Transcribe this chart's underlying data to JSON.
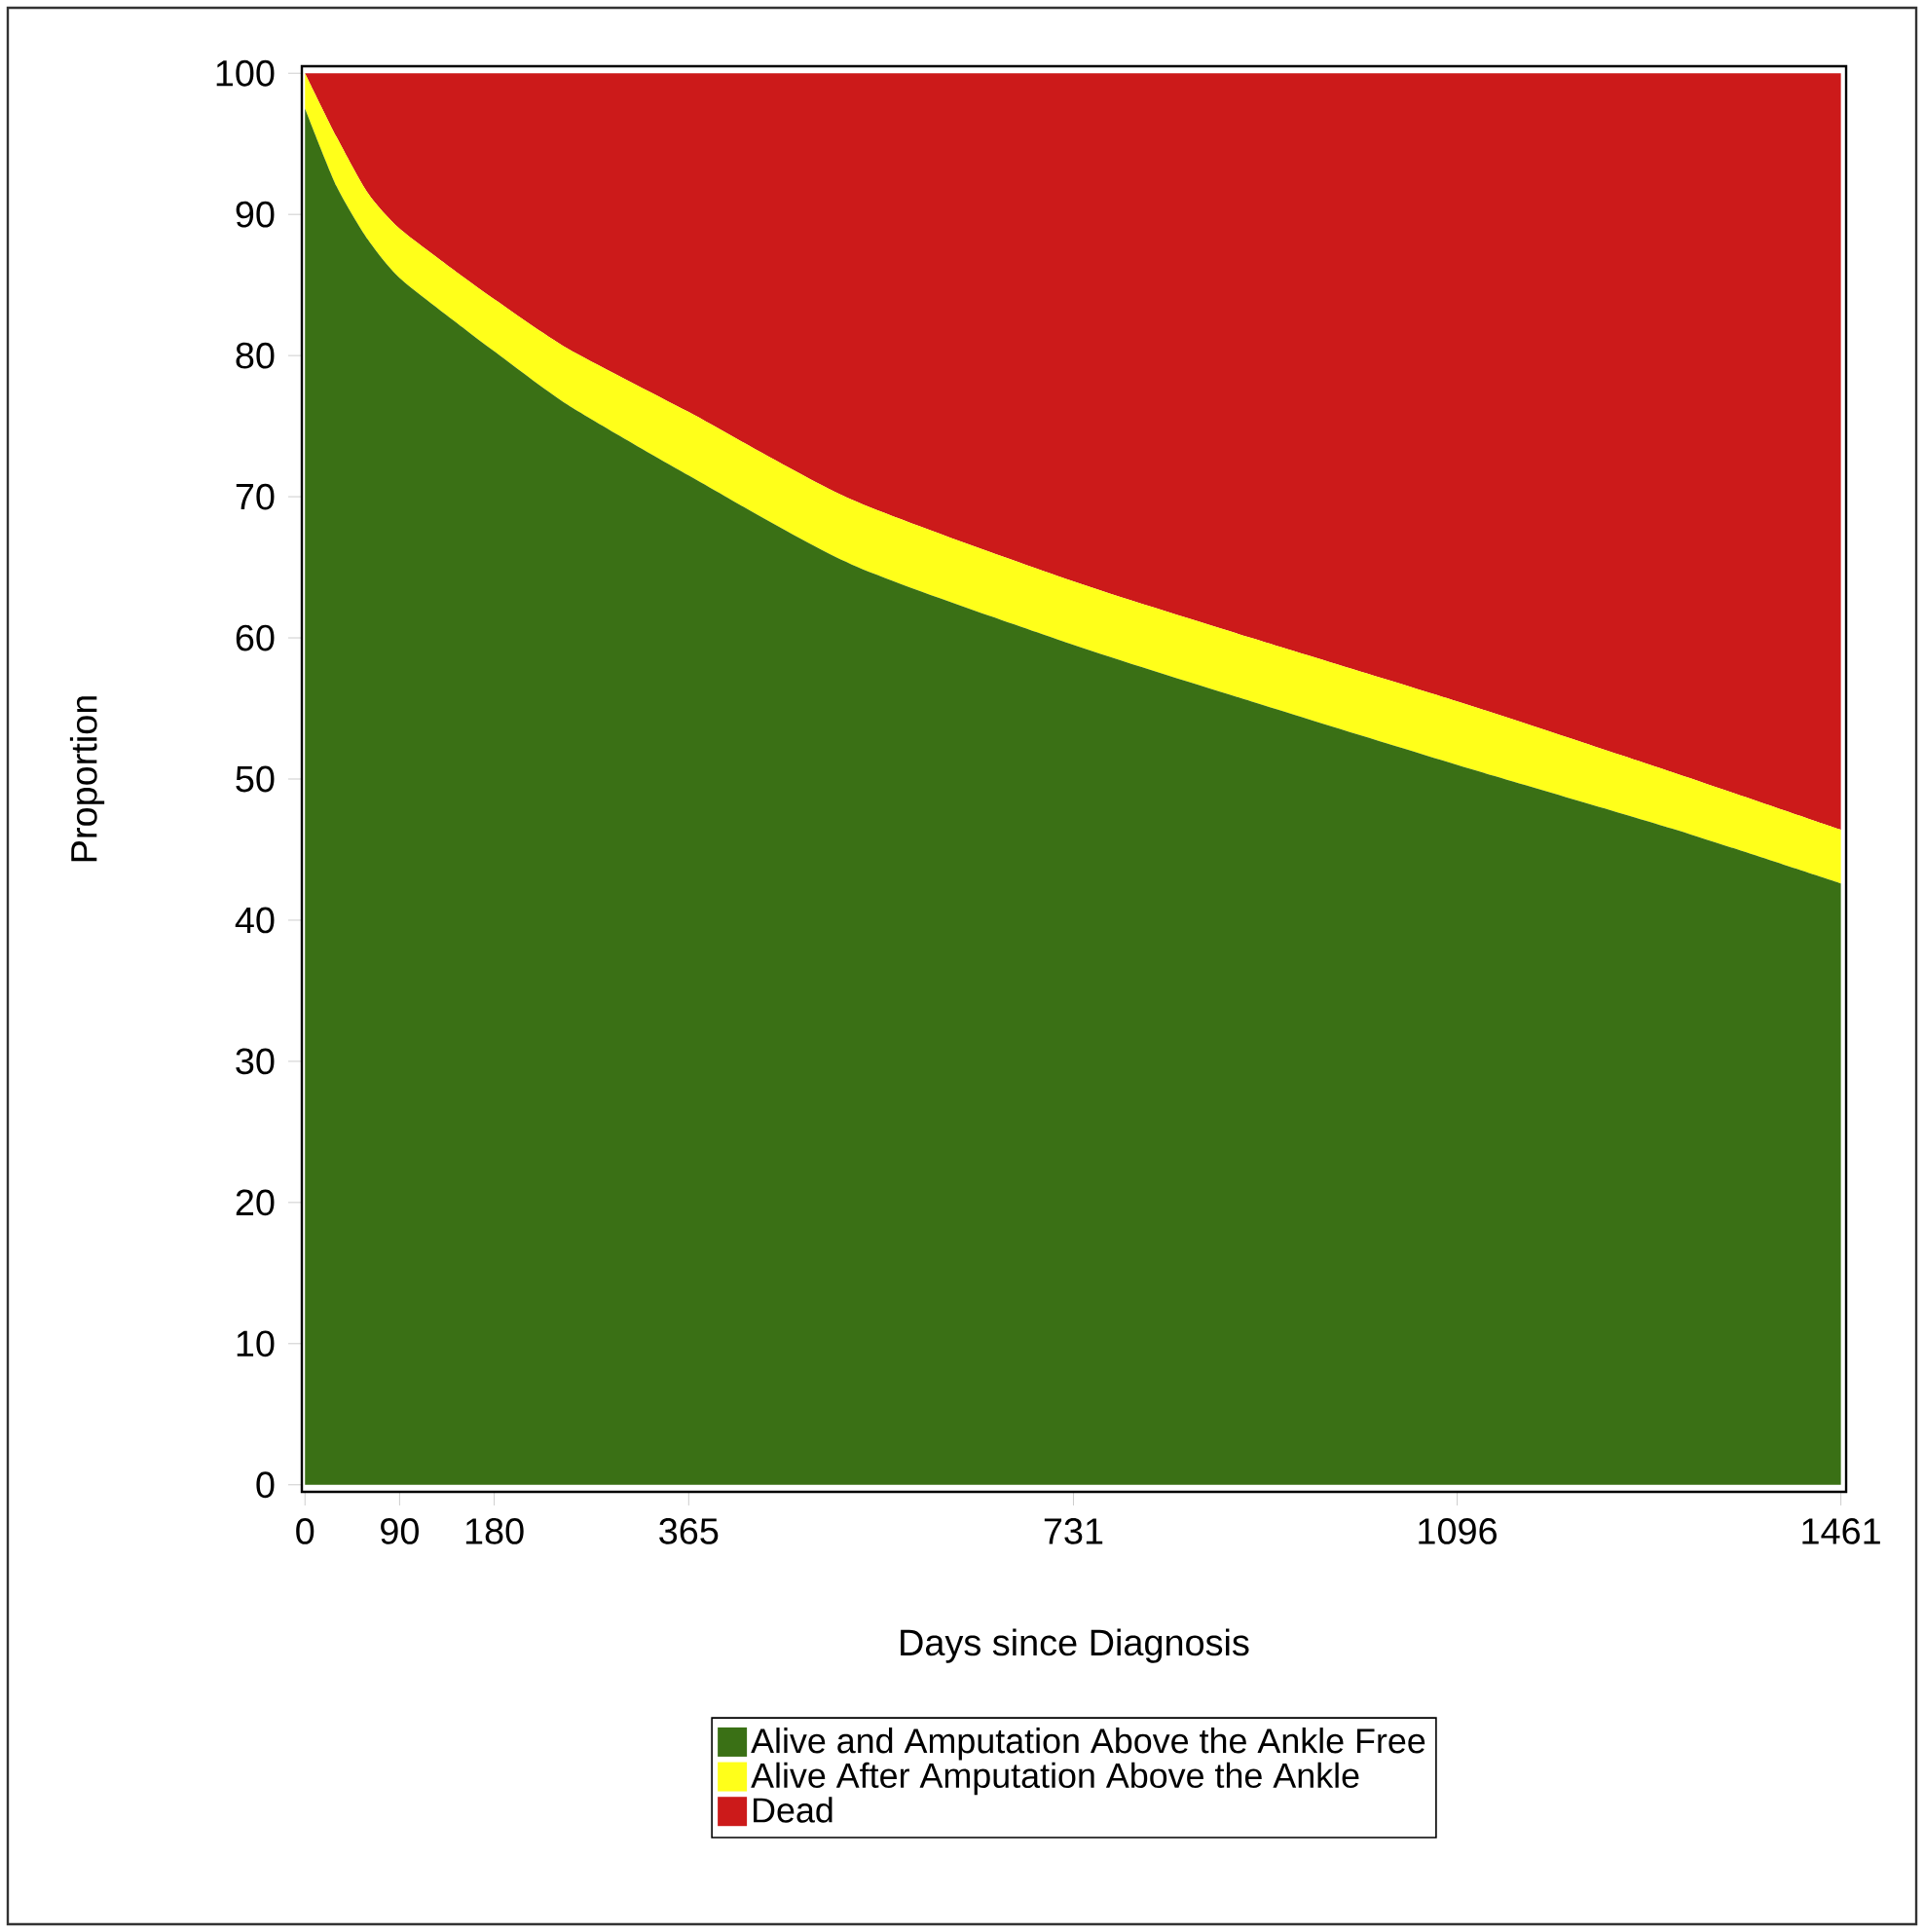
{
  "chart_data": {
    "type": "area",
    "stacked": true,
    "xlabel": "Days since Diagnosis",
    "ylabel": "Proportion",
    "x": [
      0,
      30,
      60,
      90,
      150,
      180,
      250,
      365,
      520,
      731,
      900,
      1096,
      1300,
      1461
    ],
    "series": [
      {
        "name": "Alive and Amputation Above the Ankle Free",
        "color": "#3a7015",
        "values": [
          97.5,
          92,
          88.2,
          85.5,
          82,
          80.3,
          76.5,
          71.5,
          65.2,
          59.5,
          55.5,
          51,
          46.5,
          42.6
        ]
      },
      {
        "name": "Alive After Amputation Above the Ankle",
        "color": "#ffff1a",
        "values": [
          2.5,
          3.5,
          3.3,
          3.5,
          3.6,
          3.7,
          4,
          4.5,
          4.6,
          4.5,
          4.5,
          4.5,
          4,
          3.8
        ]
      },
      {
        "name": "Dead",
        "color": "#cc1a1a",
        "values": [
          0,
          4.5,
          8.5,
          11,
          14.4,
          16,
          19.5,
          24,
          30.2,
          36,
          40,
          44.5,
          49.5,
          53.6
        ]
      }
    ],
    "xlim": [
      -3,
      1466
    ],
    "ylim": [
      -0.5,
      100.5
    ],
    "xticks": [
      0,
      90,
      180,
      365,
      731,
      1096,
      1461
    ],
    "yticks": [
      0,
      10,
      20,
      30,
      40,
      50,
      60,
      70,
      80,
      90,
      100
    ],
    "grid": false,
    "legend": "bottom"
  }
}
